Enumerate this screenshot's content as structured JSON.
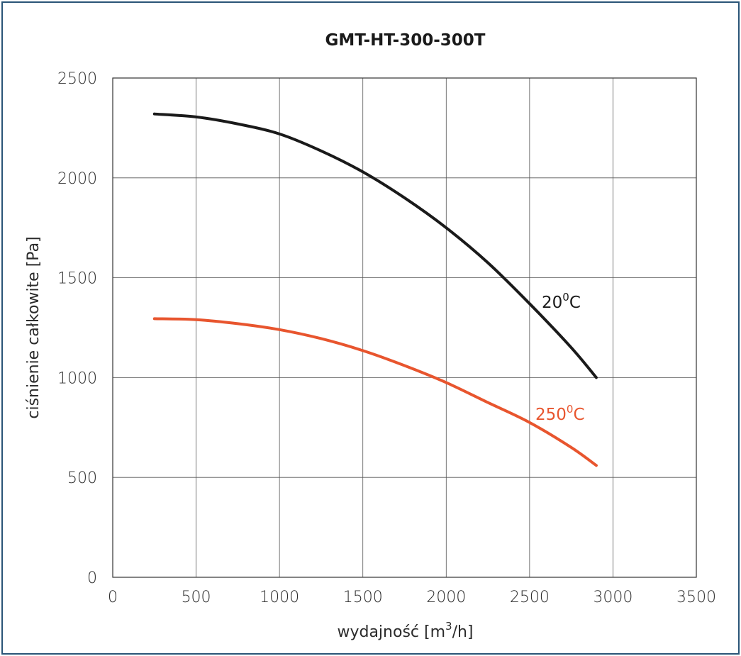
{
  "chart_data": {
    "type": "line",
    "title": "GMT-HT-300-300T",
    "xlabel": "wydajność [m³/h]",
    "xlabel_main": "wydajność [m",
    "xlabel_sup": "3",
    "xlabel_tail": "/h]",
    "ylabel": "ciśnienie całkowite [Pa]",
    "xlim": [
      0,
      3500
    ],
    "ylim": [
      0,
      2500
    ],
    "x_ticks": [
      "0",
      "500",
      "1000",
      "1500",
      "2000",
      "2500",
      "3000",
      "3500"
    ],
    "y_ticks": [
      "0",
      "500",
      "1000",
      "1500",
      "2000",
      "2500"
    ],
    "grid": true,
    "series": [
      {
        "name": "20⁰C",
        "label_main": "20",
        "label_sup": "0",
        "label_tail": "C",
        "color": "#1a1a1a",
        "x": [
          250,
          500,
          750,
          1000,
          1250,
          1500,
          1750,
          2000,
          2250,
          2500,
          2750,
          2900
        ],
        "y": [
          2320,
          2305,
          2270,
          2220,
          2135,
          2030,
          1900,
          1750,
          1575,
          1370,
          1150,
          1000
        ]
      },
      {
        "name": "250⁰C",
        "label_main": "250",
        "label_sup": "0",
        "label_tail": "C",
        "color": "#e8552e",
        "x": [
          250,
          500,
          750,
          1000,
          1250,
          1500,
          1750,
          2000,
          2250,
          2500,
          2750,
          2900
        ],
        "y": [
          1295,
          1290,
          1270,
          1240,
          1195,
          1135,
          1060,
          975,
          875,
          775,
          650,
          560
        ]
      }
    ]
  }
}
